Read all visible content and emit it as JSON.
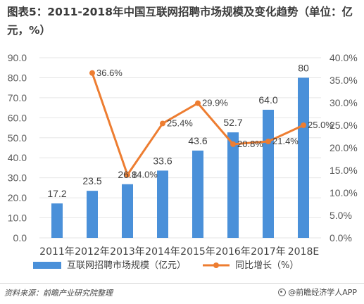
{
  "title": "图表5：2011-2018年中国互联网招聘市场规模及变化趋势（单位：亿元，%）",
  "source": "资料来源：前瞻产业研究院整理",
  "brand": "@前瞻经济学人APP",
  "colors": {
    "bar": "#4a90d9",
    "line": "#ed7d31",
    "axis_text": "#595959",
    "grid": "#e6e6e6"
  },
  "chart_data": {
    "type": "bar",
    "categories": [
      "2011年",
      "2012年",
      "2013年",
      "2014年",
      "2015年",
      "2016年",
      "2017年",
      "2018E"
    ],
    "series": [
      {
        "name": "互联网招聘市场规模（亿元）",
        "type": "bar",
        "axis": "left",
        "values": [
          17.2,
          23.5,
          26.8,
          33.6,
          43.6,
          52.7,
          64.0,
          80
        ],
        "labels": [
          "17.2",
          "23.5",
          "26.8",
          "33.6",
          "43.6",
          "52.7",
          "64.0",
          "80"
        ]
      },
      {
        "name": "同比增长（%）",
        "type": "line",
        "axis": "right",
        "values": [
          null,
          36.6,
          14.0,
          25.4,
          29.9,
          20.8,
          21.4,
          25.0
        ],
        "labels": [
          "",
          "36.6%",
          "14.0%",
          "25.4%",
          "29.9%",
          "20.8%",
          "21.4%",
          "25.0%"
        ]
      }
    ],
    "y_left": {
      "lim": [
        0,
        90
      ],
      "ticks": [
        0,
        10,
        20,
        30,
        40,
        50,
        60,
        70,
        80,
        90
      ],
      "tick_labels": [
        "0.0",
        "10.0",
        "20.0",
        "30.0",
        "40.0",
        "50.0",
        "60.0",
        "70.0",
        "80.0",
        "90.0"
      ]
    },
    "y_right": {
      "lim": [
        0,
        40
      ],
      "ticks": [
        0,
        5,
        10,
        15,
        20,
        25,
        30,
        35,
        40
      ],
      "tick_labels": [
        "0.0%",
        "5.0%",
        "10.0%",
        "15.0%",
        "20.0%",
        "25.0%",
        "30.0%",
        "35.0%",
        "40.0%"
      ]
    },
    "grid": true,
    "legend": "bottom"
  }
}
